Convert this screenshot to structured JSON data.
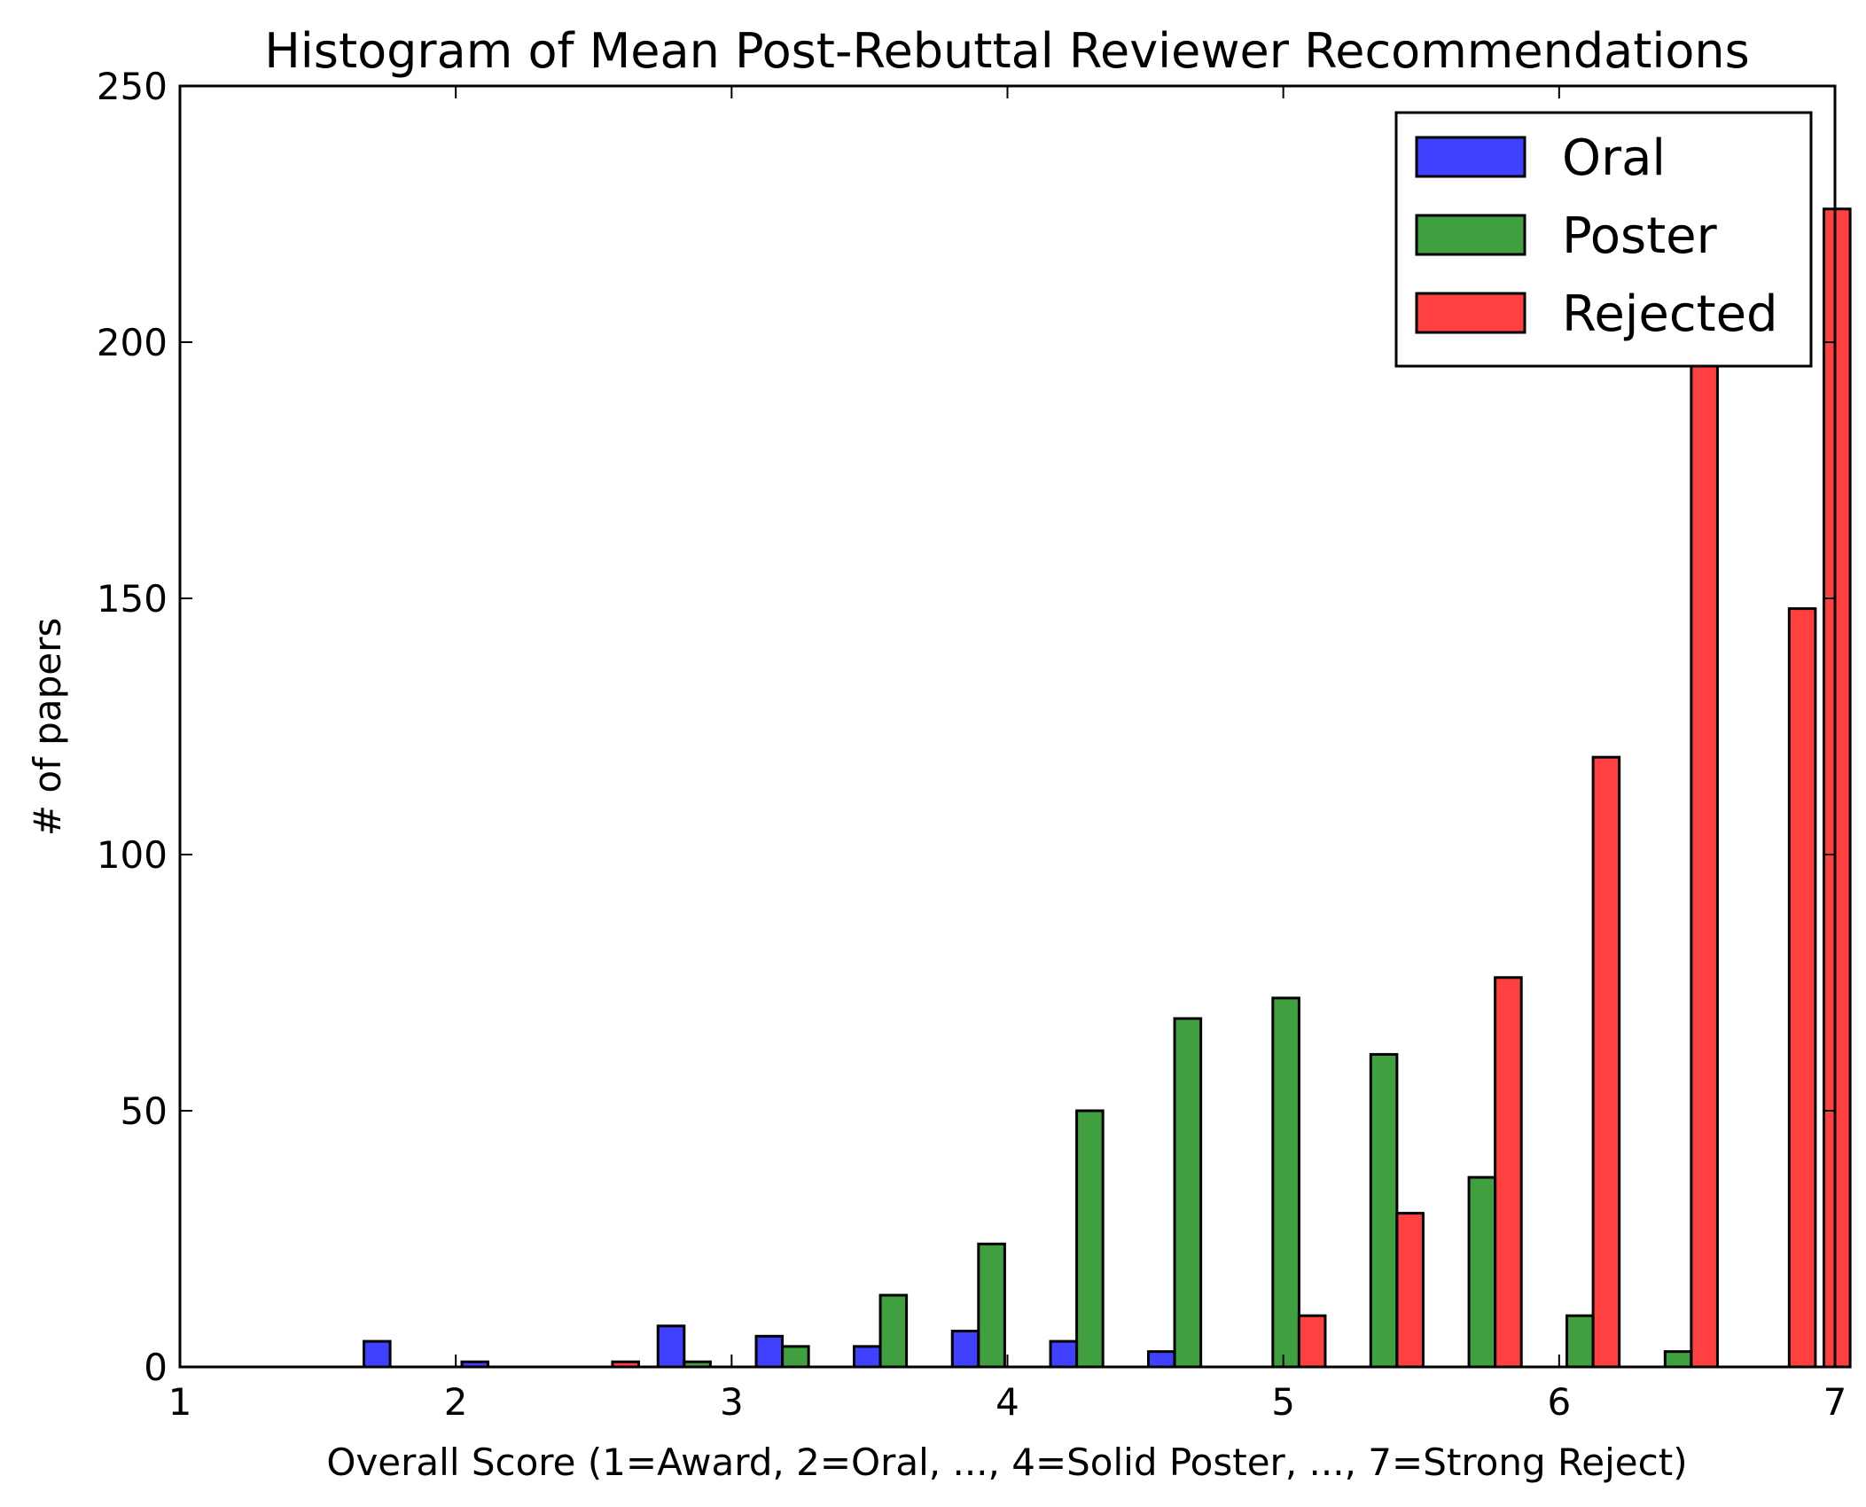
{
  "chart_data": {
    "type": "bar",
    "title": "Histogram of Mean Post-Rebuttal Reviewer Recommendations",
    "xlabel": "Overall Score (1=Award, 2=Oral, ..., 4=Solid Poster, ..., 7=Strong Reject)",
    "ylabel": "# of papers",
    "xlim": [
      1,
      7
    ],
    "ylim": [
      0,
      250
    ],
    "xticks": [
      "1",
      "2",
      "3",
      "4",
      "5",
      "6",
      "7"
    ],
    "yticks": [
      "0",
      "50",
      "100",
      "150",
      "200",
      "250"
    ],
    "legend_position": "top-right",
    "bins": [
      1.667,
      2.022,
      2.378,
      2.733,
      3.089,
      3.444,
      3.8,
      4.156,
      4.511,
      4.867,
      5.222,
      5.578,
      5.933,
      6.289,
      6.644
    ],
    "series": [
      {
        "name": "Oral",
        "color": "#0000ff",
        "values": [
          5,
          1,
          0,
          8,
          6,
          4,
          7,
          5,
          3,
          0,
          0,
          0,
          0,
          0,
          0
        ]
      },
      {
        "name": "Poster",
        "color": "#008000",
        "values": [
          0,
          0,
          0,
          1,
          4,
          14,
          24,
          50,
          68,
          72,
          61,
          37,
          10,
          3,
          0
        ]
      },
      {
        "name": "Rejected",
        "color": "#ff0000",
        "values": [
          0,
          0,
          1,
          0,
          0,
          0,
          0,
          0,
          0,
          10,
          30,
          76,
          119,
          205,
          148
        ]
      }
    ],
    "extra_bars": [
      {
        "series": "Rejected",
        "x": 6.96,
        "value": 226
      }
    ]
  }
}
